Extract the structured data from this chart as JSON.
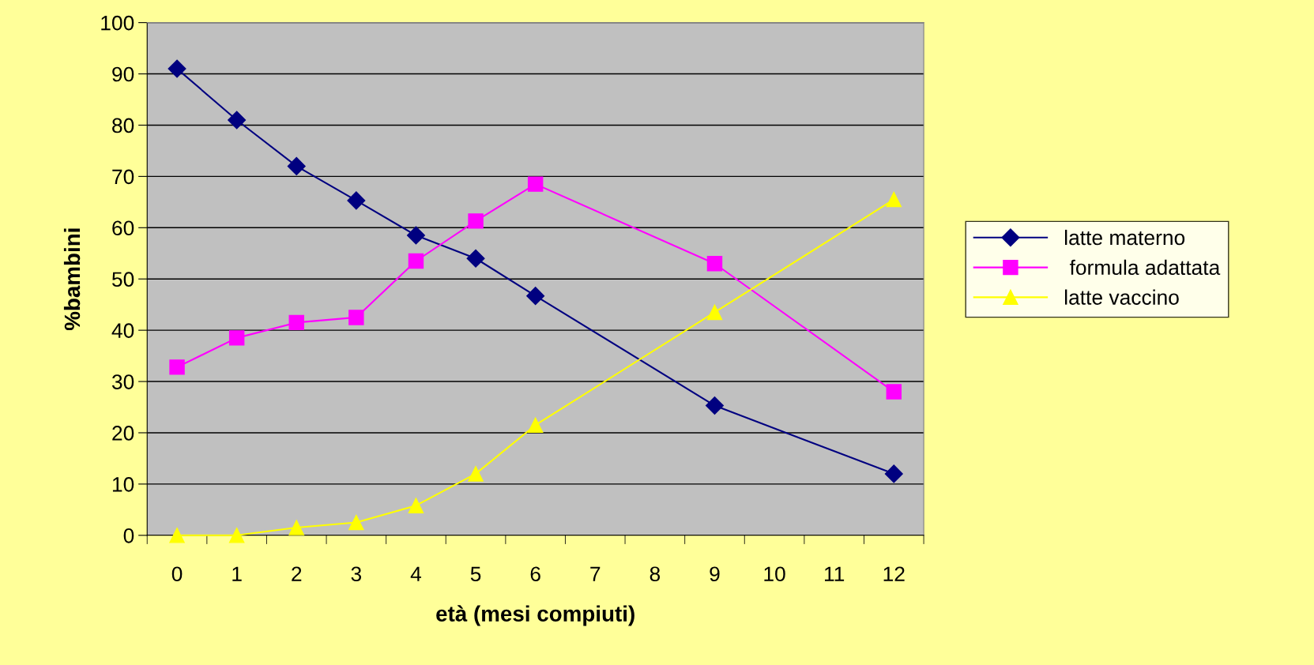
{
  "chart_data": {
    "type": "line",
    "xlabel": "età (mesi compiuti)",
    "ylabel": "%bambini",
    "categories": [
      "0",
      "1",
      "2",
      "3",
      "4",
      "5",
      "6",
      "7",
      "8",
      "9",
      "10",
      "11",
      "12"
    ],
    "ylim": [
      0,
      100
    ],
    "yticks": [
      0,
      10,
      20,
      30,
      40,
      50,
      60,
      70,
      80,
      90,
      100
    ],
    "grid": "y",
    "legend": "right",
    "series": [
      {
        "name": "latte materno",
        "color": "#000080",
        "marker": "diamond",
        "values": [
          91,
          81,
          72,
          65.3,
          58.5,
          54,
          46.7,
          null,
          null,
          25.3,
          null,
          null,
          12
        ]
      },
      {
        "name": " formula adattata",
        "color": "#ff00ff",
        "marker": "square",
        "values": [
          32.8,
          38.5,
          41.5,
          42.5,
          53.5,
          61.3,
          68.5,
          null,
          null,
          53,
          null,
          null,
          28
        ]
      },
      {
        "name": "latte vaccino",
        "color": "#ffff00",
        "marker": "triangle",
        "values": [
          0,
          0,
          1.5,
          2.5,
          5.8,
          12,
          21.5,
          null,
          null,
          43.5,
          null,
          null,
          65.5
        ]
      }
    ]
  }
}
